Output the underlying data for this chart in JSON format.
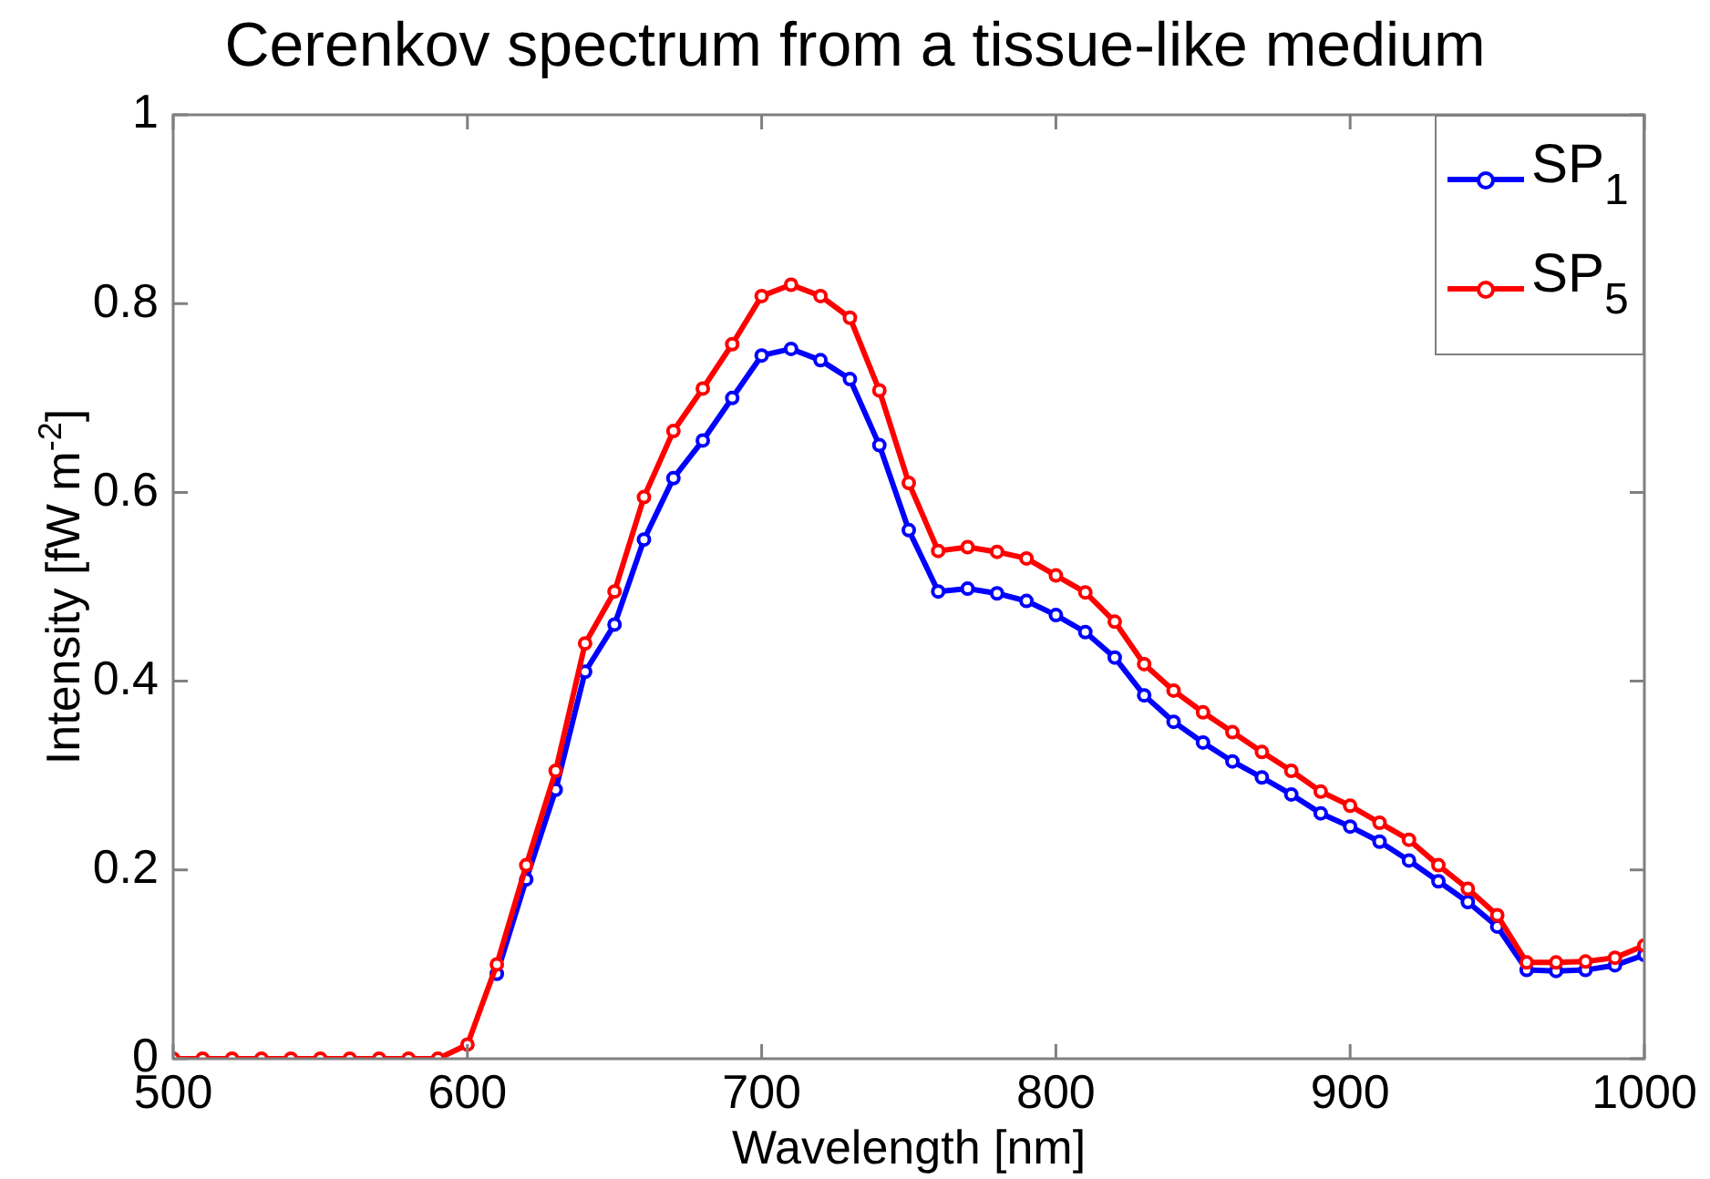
{
  "chart_data": {
    "type": "line",
    "title": "Cerenkov spectrum from a tissue-like medium",
    "xlabel": "Wavelength [nm]",
    "ylabel": "Intensity [fW m$^{-2}$]",
    "x": [
      500,
      510,
      520,
      530,
      540,
      550,
      560,
      570,
      580,
      590,
      600,
      610,
      620,
      630,
      640,
      650,
      660,
      670,
      680,
      690,
      700,
      710,
      720,
      730,
      740,
      750,
      760,
      770,
      780,
      790,
      800,
      810,
      820,
      830,
      840,
      850,
      860,
      870,
      880,
      890,
      900,
      910,
      920,
      930,
      940,
      950,
      960,
      970,
      980,
      990,
      1000
    ],
    "series": [
      {
        "name": "SP$_{1}$",
        "color": "#0000ff",
        "values": [
          null,
          null,
          null,
          null,
          null,
          null,
          null,
          null,
          null,
          null,
          null,
          0.09,
          0.19,
          0.285,
          0.41,
          0.46,
          0.55,
          0.615,
          0.655,
          0.7,
          0.745,
          0.752,
          0.74,
          0.72,
          0.65,
          0.56,
          0.495,
          0.498,
          0.493,
          0.485,
          0.47,
          0.452,
          0.425,
          0.385,
          0.357,
          0.335,
          0.315,
          0.298,
          0.28,
          0.26,
          0.246,
          0.23,
          0.21,
          0.188,
          0.166,
          0.14,
          0.094,
          0.093,
          0.094,
          0.099,
          0.11
        ]
      },
      {
        "name": "SP$_{5}$",
        "color": "#ff0000",
        "values": [
          0,
          0,
          0,
          0,
          0,
          0,
          0,
          0,
          0,
          0,
          0.015,
          0.1,
          0.205,
          0.305,
          0.44,
          0.495,
          0.595,
          0.665,
          0.71,
          0.757,
          0.808,
          0.82,
          0.808,
          0.785,
          0.708,
          0.61,
          0.538,
          0.542,
          0.537,
          0.53,
          0.512,
          0.494,
          0.463,
          0.418,
          0.39,
          0.367,
          0.346,
          0.325,
          0.305,
          0.283,
          0.268,
          0.25,
          0.232,
          0.205,
          0.18,
          0.152,
          0.102,
          0.102,
          0.103,
          0.107,
          0.12
        ]
      }
    ],
    "xlim": [
      500,
      1000
    ],
    "xticks": [
      500,
      600,
      700,
      800,
      900,
      1000
    ],
    "ylim": [
      0,
      1
    ],
    "yticks": [
      0,
      0.2,
      0.4,
      0.6,
      0.8,
      1
    ],
    "grid": false,
    "legend": "top right",
    "marker": "circle",
    "line_style": "solid"
  }
}
